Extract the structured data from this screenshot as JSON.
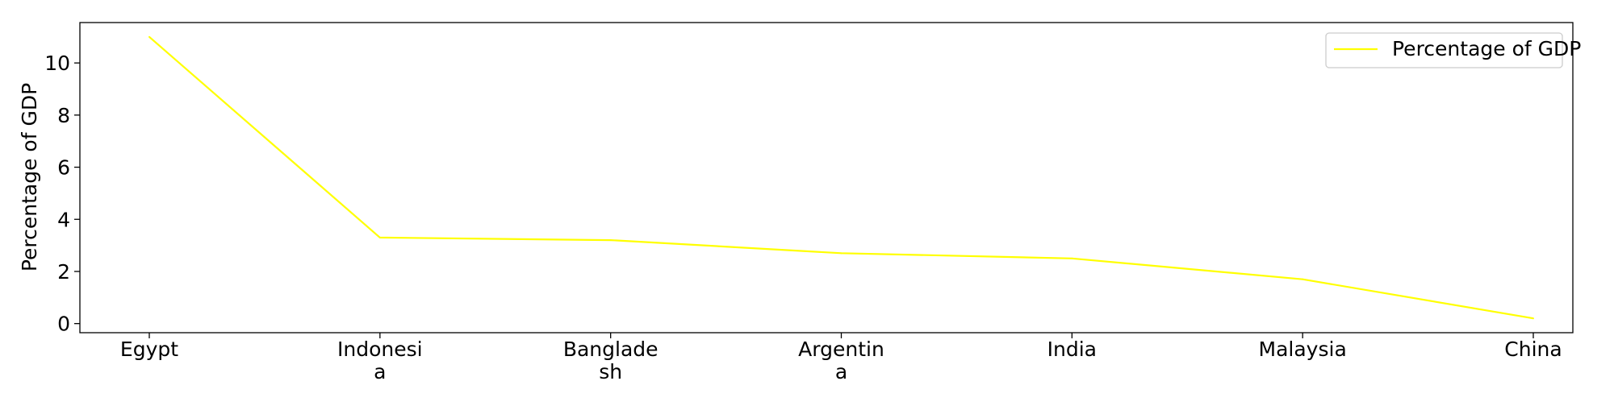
{
  "chart_data": {
    "type": "line",
    "categories": [
      "Egypt",
      "Indonesia",
      "Bangladesh",
      "Argentina",
      "India",
      "Malaysia",
      "China"
    ],
    "category_lines": [
      [
        "Egypt"
      ],
      [
        "Indonesi",
        "a"
      ],
      [
        "Banglade",
        "sh"
      ],
      [
        "Argentin",
        "a"
      ],
      [
        "India"
      ],
      [
        "Malaysia"
      ],
      [
        "China"
      ]
    ],
    "series": [
      {
        "name": "Percentage of GDP",
        "values": [
          11.0,
          3.3,
          3.2,
          2.7,
          2.5,
          1.7,
          0.2
        ],
        "color": "#ffff00"
      }
    ],
    "ylabel": "Percentage of GDP",
    "xlabel": "",
    "yticks": [
      0,
      2,
      4,
      6,
      8,
      10
    ],
    "ylim": [
      -0.35,
      11.55
    ],
    "grid": false,
    "legend": "top-right"
  }
}
